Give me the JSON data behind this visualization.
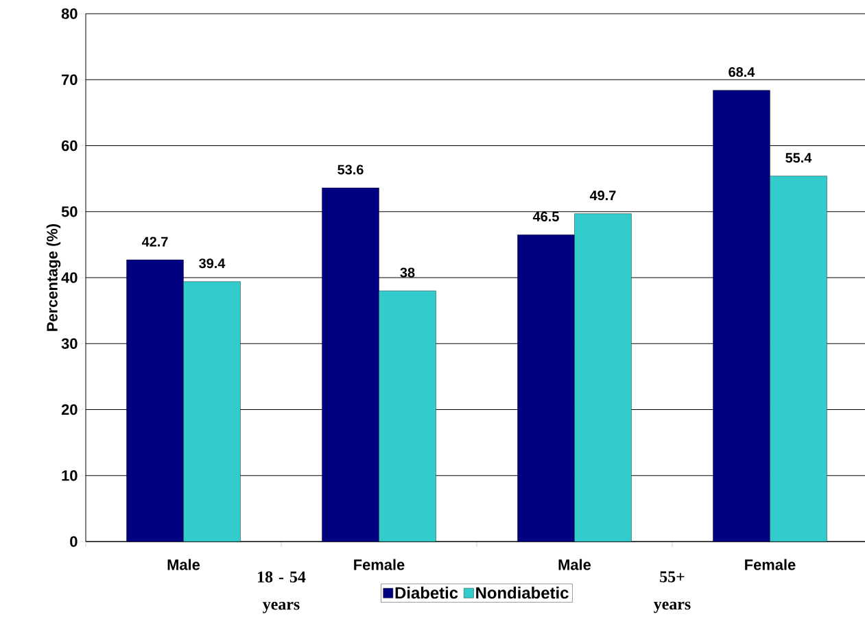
{
  "chart_data": {
    "type": "bar",
    "ylabel": "Percentage (%)",
    "categories": [
      "Male",
      "Female",
      "Male",
      "Female"
    ],
    "series": [
      {
        "name": "Diabetic",
        "color": "#000080",
        "values": [
          42.7,
          53.6,
          46.5,
          68.4
        ]
      },
      {
        "name": "Nondiabetic",
        "color": "#33cccc",
        "values": [
          39.4,
          38,
          49.7,
          55.4
        ]
      }
    ],
    "annotations": [
      "18 - 54 years",
      "55+ years"
    ],
    "ylim": [
      0,
      80
    ],
    "yticks": [
      0,
      10,
      20,
      30,
      40,
      50,
      60,
      70,
      80
    ],
    "grid": "y",
    "legend": "bottom",
    "data_labels": true
  }
}
